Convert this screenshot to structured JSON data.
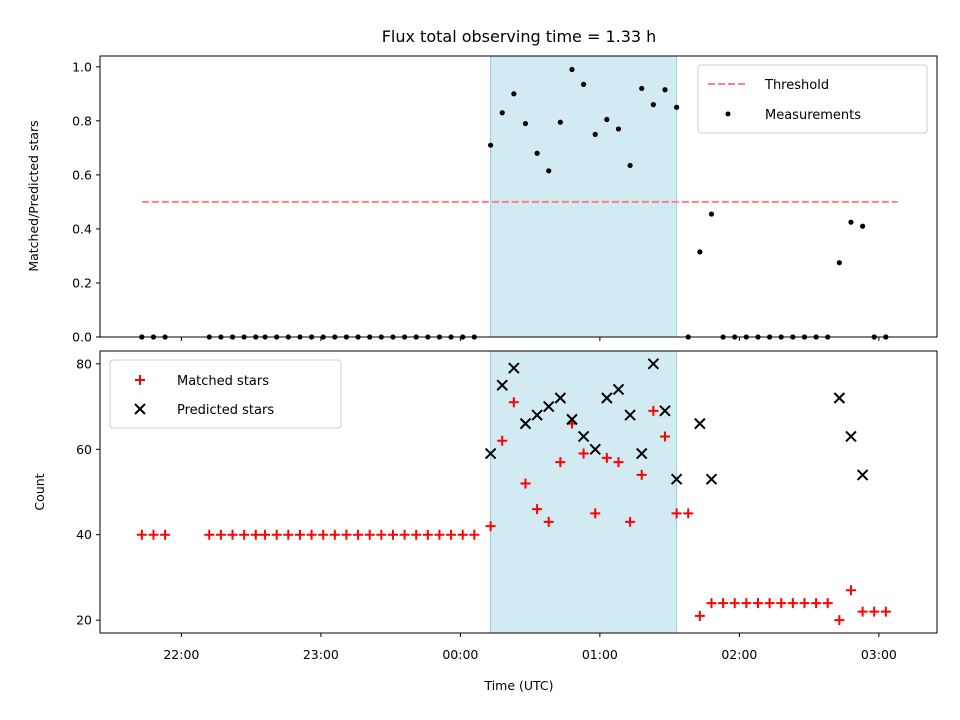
{
  "colors": {
    "threshold": "#ff8080",
    "measurement": "#000000",
    "matched": "#ff0000",
    "predicted": "#000000",
    "highlight": "#add8e6"
  },
  "chart_data": [
    {
      "type": "scatter",
      "title": "Flux total observing time = 1.33 h",
      "xlabel": "",
      "ylabel": "Matched/Predicted stars",
      "xlim": [
        "21:25",
        "03:25"
      ],
      "ylim": [
        0,
        1.04
      ],
      "yticks": [
        "0.0",
        "0.2",
        "0.4",
        "0.6",
        "0.8",
        "1.0"
      ],
      "highlight_span": [
        "00:13",
        "01:33"
      ],
      "legend": {
        "placement": "top-right",
        "entries": [
          "Threshold",
          "Measurements"
        ]
      },
      "series": [
        {
          "name": "Threshold",
          "kind": "dashed-line",
          "x": [
            "21:43",
            "03:08"
          ],
          "y": [
            0.5,
            0.5
          ]
        },
        {
          "name": "Measurements",
          "kind": "dots",
          "x": [
            "21:43",
            "21:48",
            "21:53",
            "22:12",
            "22:17",
            "22:22",
            "22:27",
            "22:32",
            "22:36",
            "22:41",
            "22:46",
            "22:51",
            "22:56",
            "23:01",
            "23:06",
            "23:11",
            "23:16",
            "23:21",
            "23:26",
            "23:31",
            "23:36",
            "23:41",
            "23:46",
            "23:51",
            "23:56",
            "00:01",
            "00:06",
            "00:13",
            "00:18",
            "00:23",
            "00:28",
            "00:33",
            "00:38",
            "00:43",
            "00:48",
            "00:53",
            "00:58",
            "01:03",
            "01:08",
            "01:13",
            "01:18",
            "01:23",
            "01:28",
            "01:33",
            "01:38",
            "01:43",
            "01:48",
            "01:53",
            "01:58",
            "02:03",
            "02:08",
            "02:13",
            "02:18",
            "02:23",
            "02:28",
            "02:33",
            "02:38",
            "02:43",
            "02:48",
            "02:53",
            "02:58",
            "03:03"
          ],
          "y": [
            0,
            0,
            0,
            0,
            0,
            0,
            0,
            0,
            0,
            0,
            0,
            0,
            0,
            0,
            0,
            0,
            0,
            0,
            0,
            0,
            0,
            0,
            0,
            0,
            0,
            0,
            0,
            0.71,
            0.83,
            0.9,
            0.79,
            0.68,
            0.615,
            0.795,
            0.99,
            0.935,
            0.75,
            0.805,
            0.77,
            0.635,
            0.92,
            0.86,
            0.915,
            0.85,
            0,
            0.315,
            0.455,
            0,
            0,
            0,
            0,
            0,
            0,
            0,
            0,
            0,
            0,
            0.275,
            0.425,
            0.41,
            0,
            0
          ]
        }
      ]
    },
    {
      "type": "scatter",
      "title": "",
      "xlabel": "Time (UTC)",
      "ylabel": "Count",
      "xlim": [
        "21:25",
        "03:25"
      ],
      "ylim": [
        17,
        83
      ],
      "yticks": [
        "20",
        "40",
        "60",
        "80"
      ],
      "xticks": [
        "22:00",
        "23:00",
        "00:00",
        "01:00",
        "02:00",
        "03:00"
      ],
      "highlight_span": [
        "00:13",
        "01:33"
      ],
      "legend": {
        "placement": "top-left",
        "entries": [
          "Matched stars",
          "Predicted stars"
        ]
      },
      "series": [
        {
          "name": "Matched stars",
          "kind": "plus",
          "x": [
            "21:43",
            "21:48",
            "21:53",
            "22:12",
            "22:17",
            "22:22",
            "22:27",
            "22:32",
            "22:36",
            "22:41",
            "22:46",
            "22:51",
            "22:56",
            "23:01",
            "23:06",
            "23:11",
            "23:16",
            "23:21",
            "23:26",
            "23:31",
            "23:36",
            "23:41",
            "23:46",
            "23:51",
            "23:56",
            "00:01",
            "00:06",
            "00:13",
            "00:18",
            "00:23",
            "00:28",
            "00:33",
            "00:38",
            "00:43",
            "00:48",
            "00:53",
            "00:58",
            "01:03",
            "01:08",
            "01:13",
            "01:18",
            "01:23",
            "01:28",
            "01:33",
            "01:38",
            "01:43",
            "01:48",
            "01:53",
            "01:58",
            "02:03",
            "02:08",
            "02:13",
            "02:18",
            "02:23",
            "02:28",
            "02:33",
            "02:38",
            "02:43",
            "02:48",
            "02:53",
            "02:58",
            "03:03"
          ],
          "y": [
            40,
            40,
            40,
            40,
            40,
            40,
            40,
            40,
            40,
            40,
            40,
            40,
            40,
            40,
            40,
            40,
            40,
            40,
            40,
            40,
            40,
            40,
            40,
            40,
            40,
            40,
            40,
            42,
            62,
            71,
            52,
            46,
            43,
            57,
            66,
            59,
            45,
            58,
            57,
            43,
            54,
            69,
            63,
            45,
            45,
            21,
            24,
            24,
            24,
            24,
            24,
            24,
            24,
            24,
            24,
            24,
            24,
            20,
            27,
            22,
            22,
            22
          ]
        },
        {
          "name": "Predicted stars",
          "kind": "x",
          "x": [
            "00:13",
            "00:18",
            "00:23",
            "00:28",
            "00:33",
            "00:38",
            "00:43",
            "00:48",
            "00:53",
            "00:58",
            "01:03",
            "01:08",
            "01:13",
            "01:18",
            "01:23",
            "01:28",
            "01:33",
            "01:43",
            "01:48",
            "02:43",
            "02:48",
            "02:53"
          ],
          "y": [
            59,
            75,
            79,
            66,
            68,
            70,
            72,
            67,
            63,
            60,
            72,
            74,
            68,
            59,
            80,
            69,
            53,
            66,
            53,
            72,
            63,
            54
          ]
        }
      ]
    }
  ]
}
